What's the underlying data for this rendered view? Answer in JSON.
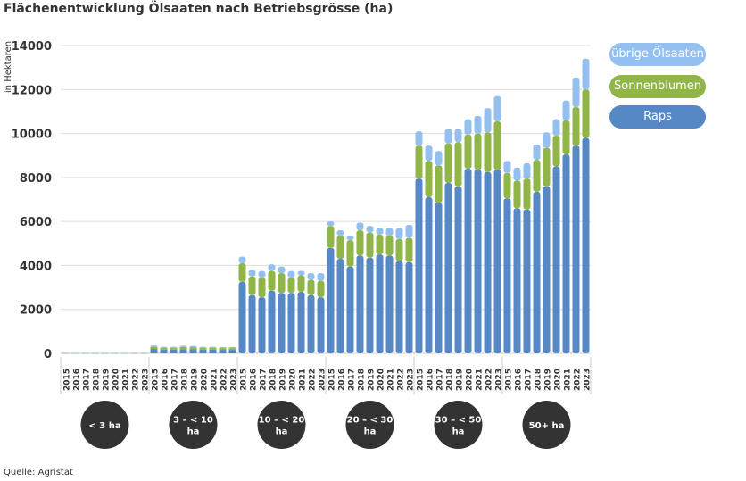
{
  "title": "Flächenentwicklung Ölsaaten nach Betriebsgrösse (ha)",
  "source": "Quelle: Agristat",
  "chart_data": {
    "type": "bar",
    "stacked": true,
    "ylabel": "in Hektaren",
    "ylim": [
      0,
      14000
    ],
    "yticks": [
      0,
      2000,
      4000,
      6000,
      8000,
      10000,
      12000,
      14000
    ],
    "grid": true,
    "legend_position": "right",
    "groups": [
      "< 3 ha",
      "3 – < 10 ha",
      "10 – < 20 ha",
      "20 – < 30 ha",
      "30 – < 50 ha",
      "50+ ha"
    ],
    "years": [
      "2015",
      "2016",
      "2017",
      "2018",
      "2019",
      "2020",
      "2021",
      "2022",
      "2023"
    ],
    "colors": {
      "Raps": "#5588c5",
      "Sonnenblumen": "#92b54a",
      "übrige Ölsaaten": "#94c0f0"
    },
    "series": [
      {
        "name": "Raps",
        "values": [
          [
            5,
            5,
            5,
            5,
            5,
            5,
            5,
            5,
            5
          ],
          [
            200,
            170,
            170,
            190,
            180,
            170,
            170,
            160,
            160
          ],
          [
            3250,
            2650,
            2550,
            2850,
            2750,
            2750,
            2800,
            2650,
            2550
          ],
          [
            4800,
            4300,
            3950,
            4450,
            4350,
            4500,
            4450,
            4200,
            4150
          ],
          [
            7950,
            7100,
            6850,
            7750,
            7600,
            8400,
            8350,
            8250,
            8350
          ],
          [
            7050,
            6600,
            6550,
            7350,
            7600,
            8500,
            9050,
            9450,
            9800
          ]
        ]
      },
      {
        "name": "Sonnenblumen",
        "values": [
          [
            3,
            3,
            3,
            3,
            3,
            3,
            3,
            3,
            3
          ],
          [
            100,
            80,
            80,
            100,
            100,
            80,
            80,
            80,
            80
          ],
          [
            850,
            850,
            900,
            900,
            900,
            700,
            750,
            700,
            750
          ],
          [
            1000,
            1050,
            1200,
            1150,
            1150,
            900,
            900,
            1000,
            1100
          ],
          [
            1500,
            1650,
            1700,
            1800,
            2000,
            1550,
            1650,
            1800,
            2200
          ],
          [
            1150,
            1250,
            1400,
            1450,
            1750,
            1400,
            1550,
            1750,
            2200
          ]
        ]
      },
      {
        "name": "übrige Ölsaaten",
        "values": [
          [
            2,
            2,
            2,
            2,
            2,
            2,
            2,
            2,
            2
          ],
          [
            60,
            50,
            50,
            60,
            60,
            50,
            50,
            50,
            50
          ],
          [
            300,
            300,
            300,
            300,
            300,
            300,
            200,
            300,
            350
          ],
          [
            200,
            250,
            200,
            350,
            300,
            300,
            350,
            500,
            600
          ],
          [
            650,
            700,
            650,
            650,
            600,
            700,
            800,
            1100,
            1150
          ],
          [
            550,
            600,
            700,
            700,
            700,
            750,
            900,
            1350,
            1400
          ]
        ]
      }
    ]
  }
}
